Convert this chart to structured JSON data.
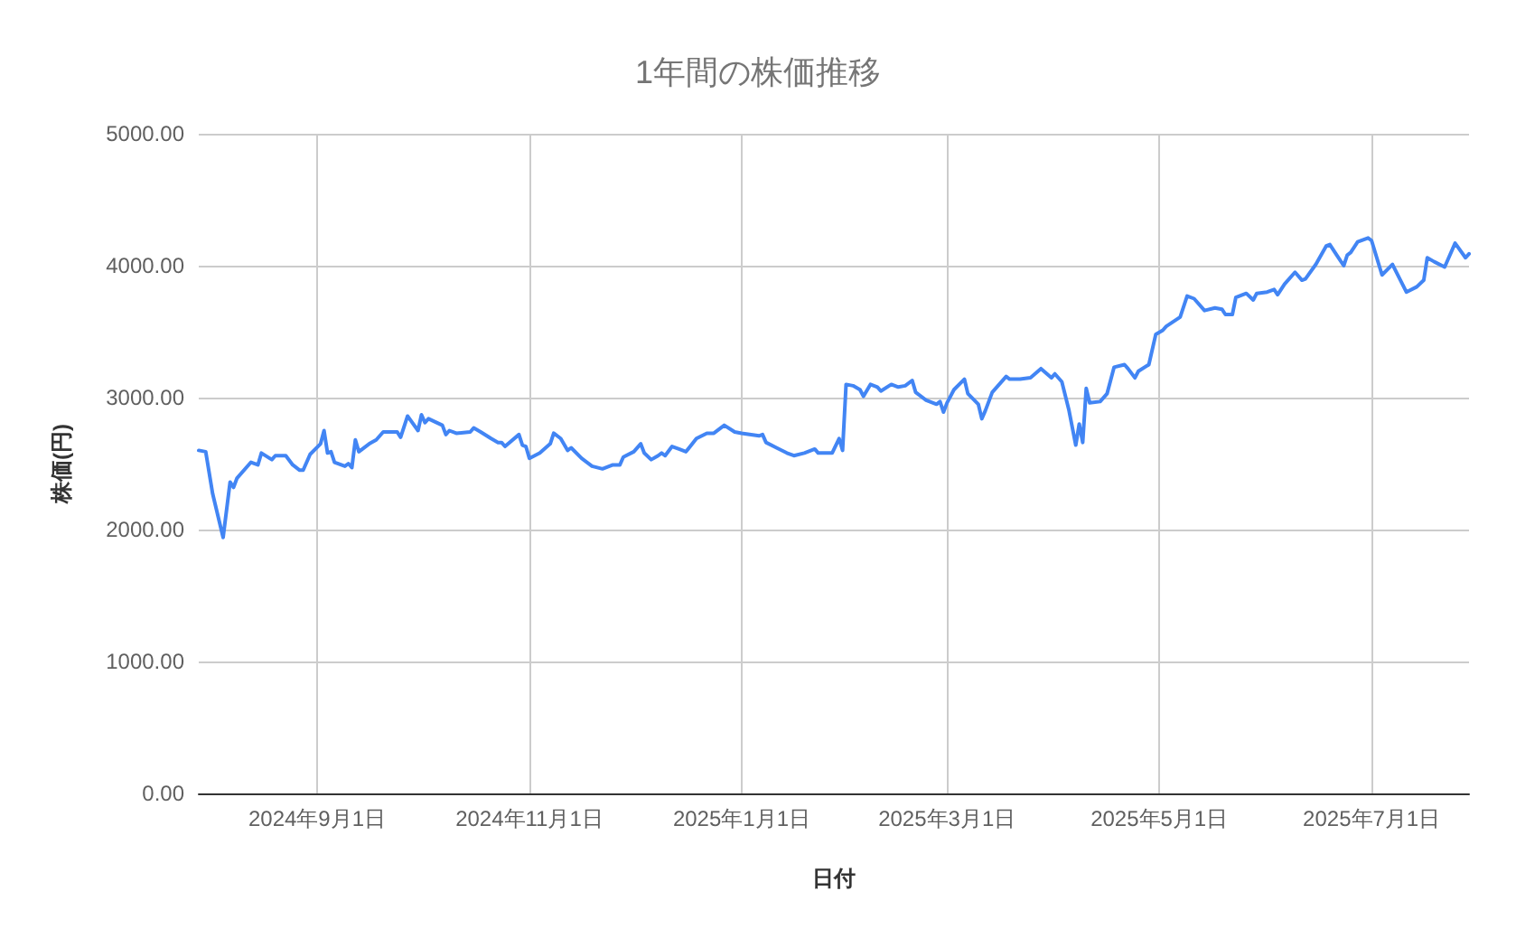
{
  "chart_data": {
    "type": "line",
    "title": "1年間の株価推移",
    "xlabel": "日付",
    "ylabel": "株価(円)",
    "color": "#4285f4",
    "grid": true,
    "xlim": [
      "2024-07-29",
      "2025-07-29"
    ],
    "xticks": [
      {
        "value": "2024-09-01",
        "label": "2024年9月1日"
      },
      {
        "value": "2024-11-01",
        "label": "2024年11月1日"
      },
      {
        "value": "2025-01-01",
        "label": "2025年1月1日"
      },
      {
        "value": "2025-03-01",
        "label": "2025年3月1日"
      },
      {
        "value": "2025-05-01",
        "label": "2025年5月1日"
      },
      {
        "value": "2025-07-01",
        "label": "2025年7月1日"
      }
    ],
    "ylim": [
      0,
      5000
    ],
    "yticks": [
      {
        "value": 0,
        "label": "0.00"
      },
      {
        "value": 1000,
        "label": "1000.00"
      },
      {
        "value": 2000,
        "label": "2000.00"
      },
      {
        "value": 3000,
        "label": "3000.00"
      },
      {
        "value": 4000,
        "label": "4000.00"
      },
      {
        "value": 5000,
        "label": "5000.00"
      }
    ],
    "x": [
      "2024-07-29",
      "2024-07-31",
      "2024-08-02",
      "2024-08-05",
      "2024-08-07",
      "2024-08-08",
      "2024-08-09",
      "2024-08-13",
      "2024-08-15",
      "2024-08-16",
      "2024-08-19",
      "2024-08-20",
      "2024-08-23",
      "2024-08-25",
      "2024-08-27",
      "2024-08-28",
      "2024-08-30",
      "2024-09-02",
      "2024-09-03",
      "2024-09-04",
      "2024-09-05",
      "2024-09-06",
      "2024-09-09",
      "2024-09-10",
      "2024-09-11",
      "2024-09-12",
      "2024-09-13",
      "2024-09-16",
      "2024-09-18",
      "2024-09-20",
      "2024-09-24",
      "2024-09-25",
      "2024-09-27",
      "2024-09-30",
      "2024-10-01",
      "2024-10-02",
      "2024-10-03",
      "2024-10-07",
      "2024-10-08",
      "2024-10-09",
      "2024-10-11",
      "2024-10-15",
      "2024-10-16",
      "2024-10-18",
      "2024-10-21",
      "2024-10-23",
      "2024-10-24",
      "2024-10-25",
      "2024-10-29",
      "2024-10-30",
      "2024-10-31",
      "2024-11-01",
      "2024-11-04",
      "2024-11-07",
      "2024-11-08",
      "2024-11-10",
      "2024-11-12",
      "2024-11-13",
      "2024-11-16",
      "2024-11-19",
      "2024-11-22",
      "2024-11-25",
      "2024-11-27",
      "2024-11-28",
      "2024-12-01",
      "2024-12-03",
      "2024-12-04",
      "2024-12-06",
      "2024-12-08",
      "2024-12-09",
      "2024-12-10",
      "2024-12-12",
      "2024-12-14",
      "2024-12-16",
      "2024-12-19",
      "2024-12-22",
      "2024-12-24",
      "2024-12-27",
      "2024-12-30",
      "2025-01-01",
      "2025-01-06",
      "2025-01-07",
      "2025-01-08",
      "2025-01-11",
      "2025-01-14",
      "2025-01-16",
      "2025-01-19",
      "2025-01-22",
      "2025-01-23",
      "2025-01-27",
      "2025-01-29",
      "2025-01-30",
      "2025-01-31",
      "2025-02-02",
      "2025-02-04",
      "2025-02-05",
      "2025-02-07",
      "2025-02-09",
      "2025-02-10",
      "2025-02-13",
      "2025-02-15",
      "2025-02-17",
      "2025-02-19",
      "2025-02-20",
      "2025-02-23",
      "2025-02-26",
      "2025-02-27",
      "2025-02-28",
      "2025-03-01",
      "2025-03-03",
      "2025-03-06",
      "2025-03-07",
      "2025-03-10",
      "2025-03-11",
      "2025-03-12",
      "2025-03-14",
      "2025-03-16",
      "2025-03-18",
      "2025-03-19",
      "2025-03-22",
      "2025-03-25",
      "2025-03-28",
      "2025-03-31",
      "2025-04-01",
      "2025-04-03",
      "2025-04-05",
      "2025-04-07",
      "2025-04-08",
      "2025-04-09",
      "2025-04-10",
      "2025-04-11",
      "2025-04-14",
      "2025-04-16",
      "2025-04-18",
      "2025-04-21",
      "2025-04-22",
      "2025-04-24",
      "2025-04-25",
      "2025-04-28",
      "2025-04-30",
      "2025-05-02",
      "2025-05-03",
      "2025-05-07",
      "2025-05-09",
      "2025-05-11",
      "2025-05-14",
      "2025-05-17",
      "2025-05-19",
      "2025-05-20",
      "2025-05-22",
      "2025-05-23",
      "2025-05-26",
      "2025-05-28",
      "2025-05-29",
      "2025-06-01",
      "2025-06-03",
      "2025-06-04",
      "2025-06-06",
      "2025-06-09",
      "2025-06-11",
      "2025-06-12",
      "2025-06-15",
      "2025-06-18",
      "2025-06-19",
      "2025-06-21",
      "2025-06-23",
      "2025-06-24",
      "2025-06-25",
      "2025-06-27",
      "2025-06-30",
      "2025-07-01",
      "2025-07-04",
      "2025-07-07",
      "2025-07-11",
      "2025-07-14",
      "2025-07-16",
      "2025-07-17",
      "2025-07-19",
      "2025-07-22",
      "2025-07-25",
      "2025-07-28",
      "2025-07-29"
    ],
    "values": [
      2600,
      2590,
      2270,
      1940,
      2360,
      2320,
      2390,
      2510,
      2490,
      2580,
      2530,
      2560,
      2560,
      2490,
      2450,
      2450,
      2570,
      2650,
      2750,
      2580,
      2590,
      2510,
      2480,
      2500,
      2470,
      2680,
      2590,
      2650,
      2680,
      2740,
      2740,
      2700,
      2860,
      2750,
      2870,
      2810,
      2840,
      2790,
      2720,
      2750,
      2730,
      2740,
      2770,
      2740,
      2690,
      2660,
      2660,
      2630,
      2720,
      2640,
      2630,
      2540,
      2580,
      2650,
      2730,
      2690,
      2600,
      2620,
      2540,
      2480,
      2460,
      2490,
      2490,
      2550,
      2590,
      2650,
      2580,
      2530,
      2560,
      2580,
      2560,
      2630,
      2610,
      2590,
      2690,
      2730,
      2730,
      2790,
      2740,
      2730,
      2710,
      2720,
      2660,
      2620,
      2580,
      2560,
      2580,
      2610,
      2580,
      2580,
      2690,
      2600,
      3100,
      3090,
      3060,
      3010,
      3100,
      3080,
      3050,
      3100,
      3080,
      3090,
      3130,
      3040,
      2980,
      2950,
      2970,
      2890,
      2960,
      3060,
      3140,
      3030,
      2950,
      2840,
      2900,
      3040,
      3100,
      3160,
      3140,
      3140,
      3150,
      3220,
      3150,
      3180,
      3120,
      2910,
      2640,
      2800,
      2660,
      3070,
      2960,
      2970,
      3030,
      3230,
      3250,
      3220,
      3150,
      3200,
      3250,
      3480,
      3510,
      3540,
      3610,
      3770,
      3750,
      3660,
      3680,
      3670,
      3630,
      3630,
      3760,
      3790,
      3740,
      3790,
      3800,
      3820,
      3780,
      3860,
      3950,
      3890,
      3900,
      4010,
      4150,
      4160,
      4080,
      4000,
      4080,
      4100,
      4180,
      4210,
      4190,
      3930,
      4010,
      3800,
      3840,
      3890,
      4060,
      4030,
      3990,
      4170,
      4060,
      4090
    ]
  }
}
